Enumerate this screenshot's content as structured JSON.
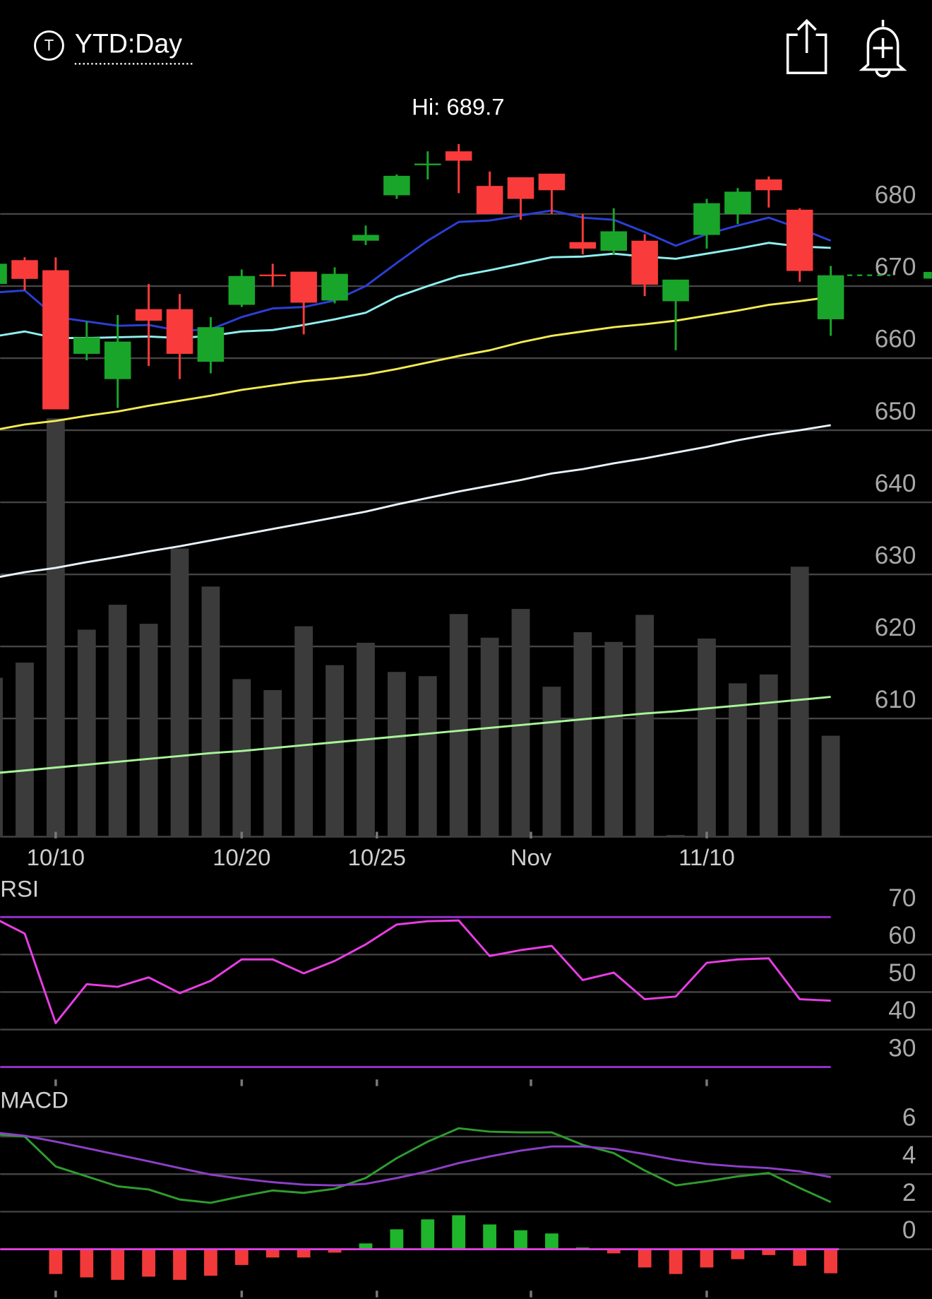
{
  "header": {
    "icon": "T",
    "title": "YTD:Day"
  },
  "chart_data": [
    {
      "type": "candlestick",
      "annotation": "Hi: 689.7",
      "open": [
        670.3,
        673.6,
        672.2,
        660.6,
        657.1,
        666.8,
        666.8,
        659.5,
        667.4,
        671.6,
        672.0,
        668.0,
        676.3,
        682.6,
        686.8,
        688.7,
        683.9,
        685.1,
        685.6,
        676.1,
        674.9,
        676.3,
        667.9,
        677.1,
        680.0,
        684.8,
        680.6,
        665.4
      ],
      "high": [
        673.1,
        674.0,
        674.0,
        665.1,
        666.0,
        670.3,
        668.9,
        665.7,
        672.3,
        673.1,
        672.0,
        672.6,
        678.4,
        685.5,
        688.7,
        689.7,
        685.9,
        685.1,
        685.6,
        680.0,
        680.8,
        677.2,
        670.9,
        682.1,
        683.6,
        685.2,
        680.8,
        672.8
      ],
      "low": [
        670.3,
        669.4,
        652.9,
        659.7,
        653.1,
        658.9,
        657.1,
        657.9,
        667.1,
        669.9,
        663.3,
        667.6,
        675.7,
        682.1,
        684.8,
        682.9,
        680.0,
        679.2,
        680.0,
        674.4,
        674.4,
        668.6,
        661.1,
        675.2,
        678.6,
        680.9,
        670.6,
        663.1
      ],
      "close": [
        673.1,
        671.0,
        652.9,
        662.9,
        662.3,
        665.2,
        660.6,
        664.3,
        671.4,
        671.4,
        667.7,
        671.7,
        677.1,
        685.3,
        687.0,
        687.4,
        680.0,
        682.1,
        683.3,
        675.2,
        677.6,
        670.2,
        670.9,
        681.5,
        683.1,
        683.3,
        672.1,
        671.5
      ],
      "up_color": "#19a52a",
      "down_color": "#fa3b3b",
      "overlays": [
        {
          "color": "#2b3fd6",
          "values": [
            669.1,
            669.4,
            665.7,
            665.1,
            664.5,
            664.6,
            663.8,
            664.0,
            665.7,
            666.9,
            667.1,
            668.0,
            670.0,
            673.2,
            676.3,
            678.9,
            679.1,
            679.8,
            680.5,
            679.5,
            679.2,
            677.5,
            675.6,
            677.2,
            678.4,
            679.5,
            678.0,
            676.3
          ]
        },
        {
          "color": "#8ff0f0",
          "values": [
            663.0,
            663.7,
            662.8,
            662.8,
            662.9,
            663.0,
            662.8,
            663.1,
            663.7,
            663.9,
            664.6,
            665.4,
            666.3,
            668.5,
            670.0,
            671.4,
            672.2,
            673.1,
            674.0,
            674.1,
            674.5,
            674.1,
            673.8,
            674.5,
            675.2,
            676.0,
            675.5,
            675.3
          ]
        },
        {
          "color": "#f2ea52",
          "values": [
            650.0,
            650.8,
            651.3,
            652.0,
            652.6,
            653.4,
            654.1,
            654.8,
            655.6,
            656.2,
            656.8,
            657.2,
            657.7,
            658.5,
            659.4,
            660.3,
            661.1,
            662.2,
            663.1,
            663.7,
            664.3,
            664.7,
            665.2,
            665.9,
            666.6,
            667.4,
            667.9,
            668.5
          ]
        },
        {
          "color": "#e8f2f8",
          "values": [
            629.5,
            630.3,
            630.9,
            631.7,
            632.4,
            633.2,
            633.9,
            634.7,
            635.5,
            636.3,
            637.1,
            637.9,
            638.7,
            639.7,
            640.6,
            641.5,
            642.3,
            643.1,
            644.0,
            644.6,
            645.4,
            646.1,
            646.9,
            647.7,
            648.6,
            649.4,
            650.0,
            650.7
          ]
        },
        {
          "color": "#a8f59a",
          "values": [
            602.4,
            602.8,
            603.2,
            603.6,
            604.0,
            604.4,
            604.8,
            605.2,
            605.5,
            605.9,
            606.3,
            606.7,
            607.1,
            607.5,
            607.9,
            608.3,
            608.7,
            609.1,
            609.5,
            609.9,
            610.3,
            610.7,
            611.0,
            611.4,
            611.8,
            612.2,
            612.6,
            613.0
          ]
        }
      ],
      "volume": {
        "color": "#3b3b3b",
        "ylim": [
          0,
          178.4
        ],
        "values": [
          37.6,
          41.2,
          99.0,
          49.0,
          54.9,
          50.4,
          68.2,
          59.2,
          37.3,
          34.7,
          49.8,
          40.6,
          45.9,
          39.0,
          38.0,
          52.7,
          47.1,
          53.9,
          35.5,
          48.4,
          46.1,
          52.5,
          0.4,
          46.9,
          36.3,
          38.4,
          63.9,
          23.9
        ]
      },
      "xlim": [
        0.21,
        30.26
      ],
      "xticks": [
        {
          "value": 2,
          "label": "10/10"
        },
        {
          "value": 8,
          "label": "10/20"
        },
        {
          "value": 12.36,
          "label": "10/25"
        },
        {
          "value": 17.33,
          "label": "Nov"
        },
        {
          "value": 23,
          "label": "11/10"
        }
      ],
      "ylim": [
        593.6,
        698.2
      ],
      "yticks": [
        610,
        620,
        630,
        640,
        650,
        660,
        670,
        680
      ],
      "grid": true
    },
    {
      "type": "line",
      "title": "RSI",
      "series": [
        {
          "color": "#e83ee4",
          "values": [
            69.8,
            65.6,
            41.7,
            52.1,
            51.4,
            53.9,
            49.7,
            53.0,
            58.7,
            58.7,
            55.0,
            58.3,
            62.7,
            68.0,
            68.9,
            69.1,
            59.6,
            61.2,
            62.3,
            53.2,
            55.2,
            48.1,
            48.8,
            57.8,
            58.7,
            59.0,
            48.1,
            47.7
          ]
        }
      ],
      "levels": [
        30,
        70
      ],
      "level_color": "#9b2fd0",
      "xlim": [
        0.21,
        30.26
      ],
      "ylim": [
        26.24,
        79.28
      ],
      "yticks": [
        30,
        40,
        50,
        60,
        70
      ],
      "grid": true
    },
    {
      "type": "macd",
      "title": "MACD",
      "series": [
        {
          "color": "#2f9c2f",
          "values": [
            6.13,
            6.0,
            4.41,
            3.88,
            3.35,
            3.18,
            2.65,
            2.47,
            2.82,
            3.13,
            3.0,
            3.22,
            3.79,
            4.85,
            5.73,
            6.44,
            6.26,
            6.22,
            6.22,
            5.56,
            5.12,
            4.19,
            3.4,
            3.62,
            3.88,
            4.06,
            3.26,
            2.51
          ]
        },
        {
          "color": "#8d3fc9",
          "values": [
            6.22,
            6.04,
            5.73,
            5.38,
            5.03,
            4.68,
            4.32,
            3.97,
            3.75,
            3.57,
            3.44,
            3.4,
            3.48,
            3.79,
            4.15,
            4.59,
            4.94,
            5.25,
            5.47,
            5.47,
            5.34,
            5.07,
            4.76,
            4.54,
            4.41,
            4.32,
            4.15,
            3.84
          ]
        }
      ],
      "histogram": {
        "up_color": "#1fb52d",
        "down_color": "#f23a3a",
        "values": [
          0,
          0,
          -1.32,
          -1.5,
          -1.63,
          -1.46,
          -1.63,
          -1.41,
          -0.84,
          -0.44,
          -0.44,
          -0.18,
          0.31,
          1.06,
          1.59,
          1.81,
          1.32,
          1.01,
          0.84,
          0.09,
          -0.22,
          -0.97,
          -1.32,
          -0.97,
          -0.53,
          -0.31,
          -0.88,
          -1.28
        ]
      },
      "zero_color": "#e040e0",
      "xlim": [
        0.21,
        30.26
      ],
      "ylim": [
        -2.65,
        8.29
      ],
      "yticks": [
        0,
        2,
        4,
        6
      ],
      "grid": true
    }
  ]
}
